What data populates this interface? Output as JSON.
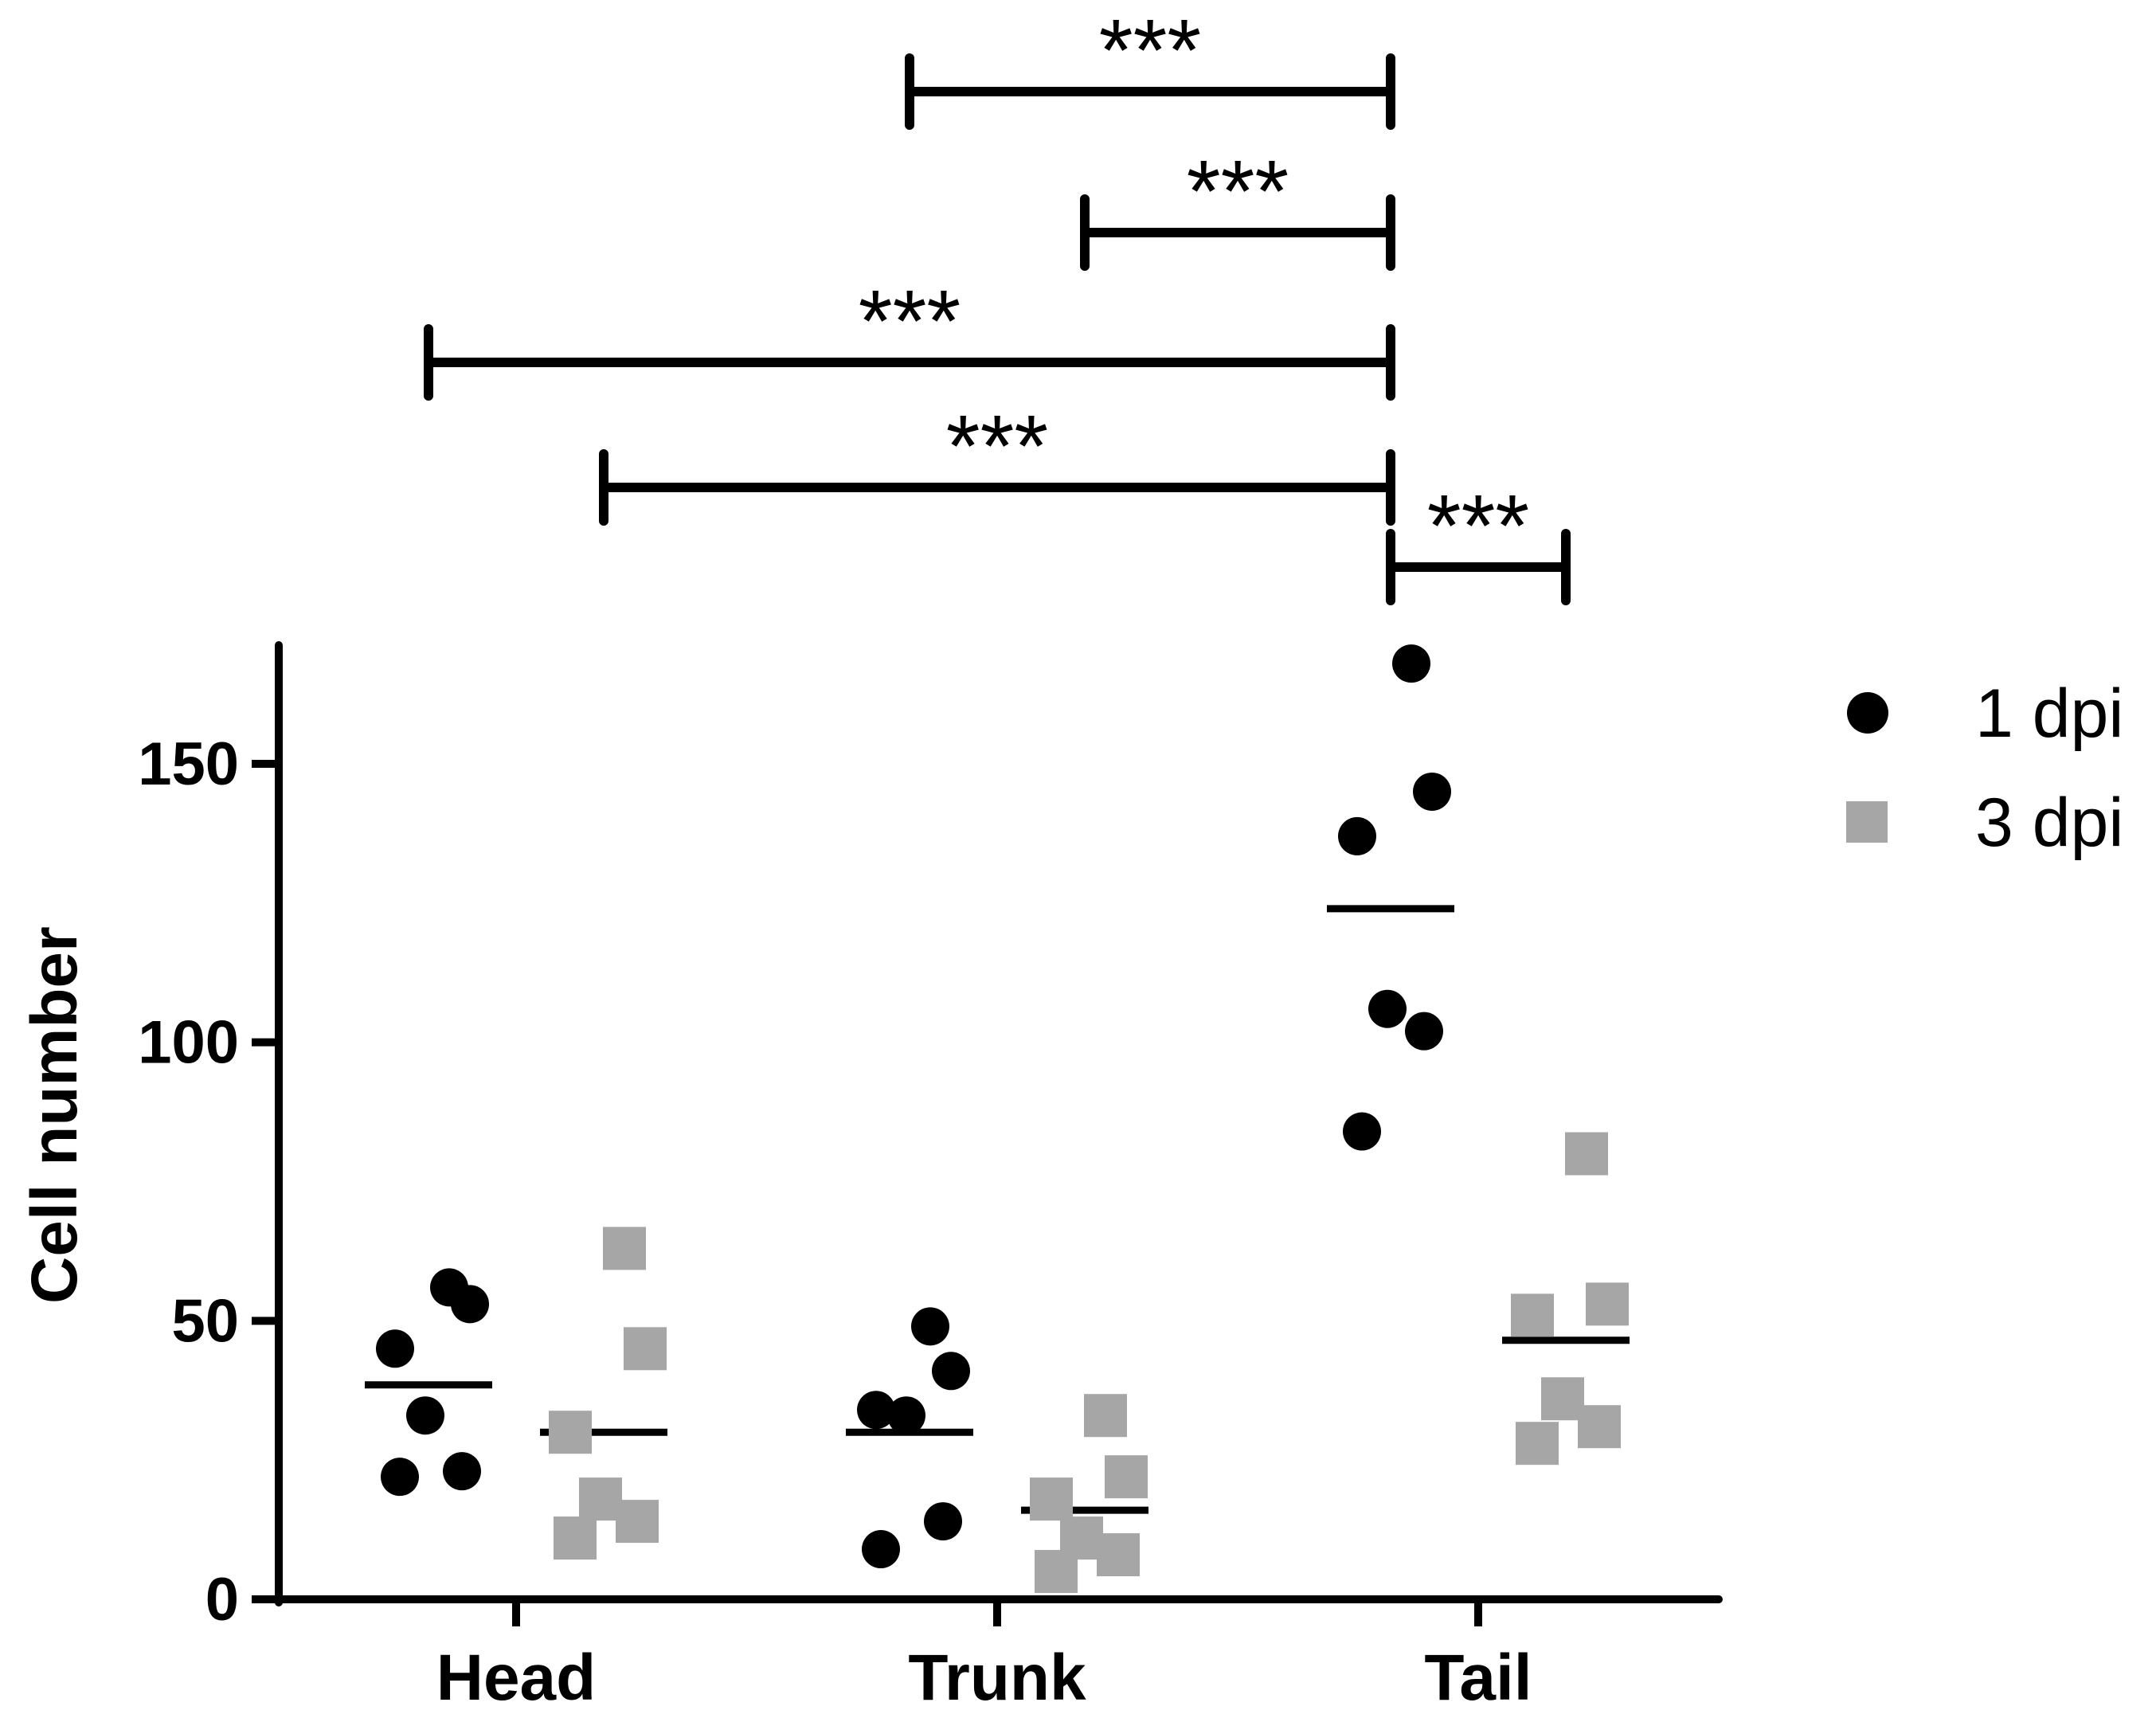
{
  "chart_data": {
    "type": "scatter",
    "title": "",
    "xlabel": "",
    "ylabel": "Cell number",
    "ylim": [
      0,
      170
    ],
    "yticks": [
      0,
      50,
      100,
      150
    ],
    "categories": [
      "Head",
      "Trunk",
      "Tail"
    ],
    "series": [
      {
        "name": "1 dpi",
        "marker": "circle",
        "color": "#000000",
        "groups": [
          {
            "category": "Head",
            "points": [
              56,
              53,
              45,
              33,
              23,
              22
            ],
            "mean": 38.5
          },
          {
            "category": "Trunk",
            "points": [
              49,
              41,
              34,
              33,
              14,
              9
            ],
            "mean": 30
          },
          {
            "category": "Tail",
            "points": [
              168,
              145,
              137,
              106,
              102,
              84
            ],
            "mean": 124
          }
        ]
      },
      {
        "name": "3 dpi",
        "marker": "square",
        "color": "#a6a6a6",
        "groups": [
          {
            "category": "Head",
            "points": [
              63,
              45,
              30,
              18,
              14,
              11
            ],
            "mean": 30
          },
          {
            "category": "Trunk",
            "points": [
              33,
              22,
              18,
              11,
              8,
              5
            ],
            "mean": 16
          },
          {
            "category": "Tail",
            "points": [
              80,
              53,
              51,
              36,
              31,
              28
            ],
            "mean": 46.5
          }
        ]
      }
    ],
    "significance": [
      {
        "from": "Trunk 1 dpi",
        "to": "Tail 1 dpi",
        "label": "***"
      },
      {
        "from": "Trunk 3 dpi",
        "to": "Tail 1 dpi",
        "label": "***"
      },
      {
        "from": "Head 1 dpi",
        "to": "Tail 1 dpi",
        "label": "***"
      },
      {
        "from": "Head 3 dpi",
        "to": "Tail 1 dpi",
        "label": "***"
      },
      {
        "from": "Tail 1 dpi",
        "to": "Tail 3 dpi",
        "label": "***"
      }
    ],
    "legend": {
      "position": "top-right",
      "entries": [
        {
          "label": "1 dpi",
          "marker": "circle",
          "color": "#000000"
        },
        {
          "label": "3 dpi",
          "marker": "square",
          "color": "#a6a6a6"
        }
      ]
    }
  }
}
